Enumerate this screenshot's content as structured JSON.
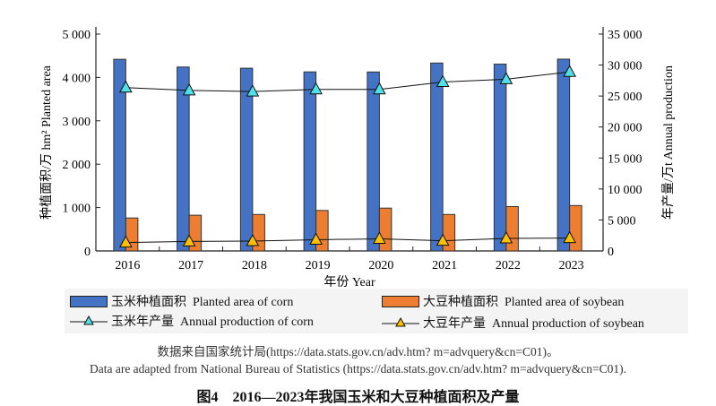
{
  "chart_data": {
    "type": "bar",
    "categories": [
      "2016",
      "2017",
      "2018",
      "2019",
      "2020",
      "2021",
      "2022",
      "2023"
    ],
    "xlabel": "年份 Year",
    "ylabel": "种植面积/万 hm² Planted area",
    "y2label": "年产量/万t Annual production",
    "ylim": [
      0,
      5000
    ],
    "y2lim": [
      0,
      35000
    ],
    "yticks": [
      "0",
      "1 000",
      "2 000",
      "3 000",
      "4 000",
      "5 000"
    ],
    "y2ticks": [
      "0",
      "5 000",
      "10 000",
      "15 000",
      "20 000",
      "25 000",
      "30 000",
      "35 000"
    ],
    "grid": false,
    "legend_placement": "bottom",
    "series": [
      {
        "name": "玉米种植面积  Planted area of corn",
        "kind": "bar",
        "axis": "left",
        "color": "#4472c4",
        "values": [
          4418,
          4240,
          4213,
          4128,
          4126,
          4332,
          4307,
          4422
        ]
      },
      {
        "name": "大豆种植面积  Planted area of soybean",
        "kind": "bar",
        "axis": "left",
        "color": "#ed7d31",
        "values": [
          760,
          824,
          841,
          933,
          988,
          841,
          1024,
          1047
        ]
      },
      {
        "name": "玉米年产量  Annual production of corn",
        "kind": "line",
        "axis": "right",
        "color": "#4fe0e8",
        "values": [
          26361,
          25907,
          25717,
          26078,
          26067,
          27255,
          27720,
          28884
        ]
      },
      {
        "name": "大豆年产量  Annual production of soybean",
        "kind": "line",
        "axis": "right",
        "color": "#ffc000",
        "values": [
          1360,
          1528,
          1597,
          1810,
          1960,
          1640,
          2028,
          2084
        ]
      }
    ]
  },
  "note_cn": "数据来自国家统计局(https://data.stats.gov.cn/adv.htm? m=advquery&cn=C01)。",
  "note_en": "Data are adapted from National Bureau of Statistics (https://data.stats.gov.cn/adv.htm? m=advquery&cn=C01).",
  "caption": "图4　2016—2023年我国玉米和大豆种植面积及产量"
}
